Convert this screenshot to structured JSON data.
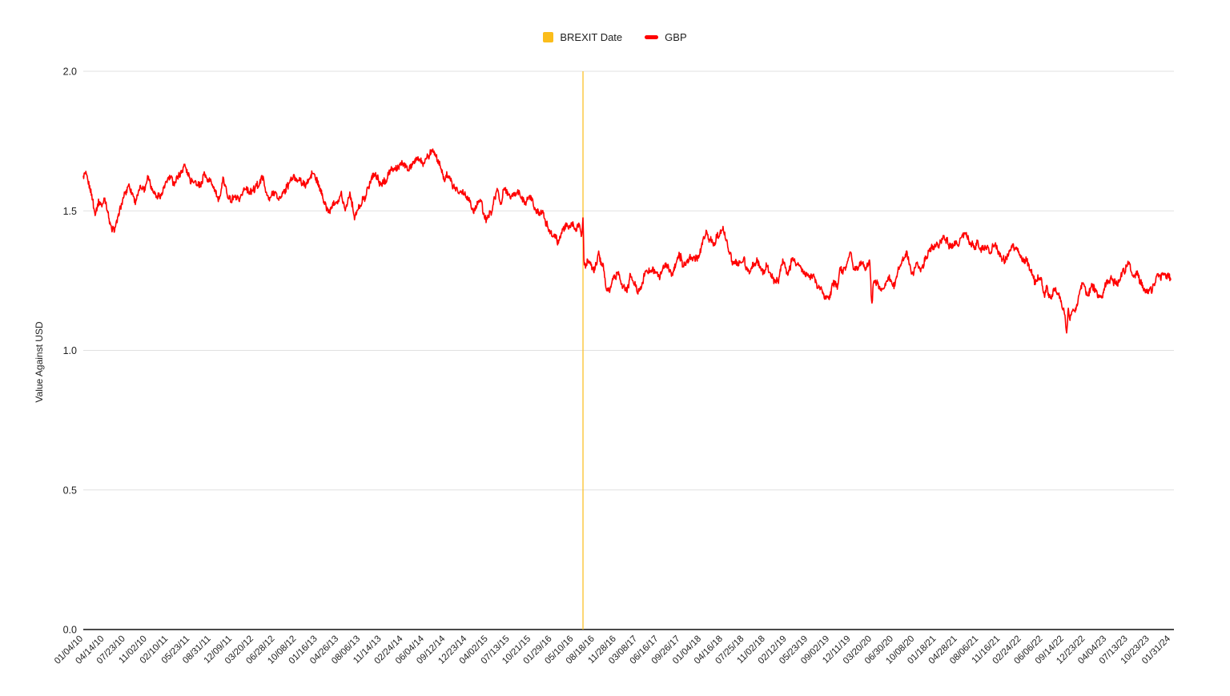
{
  "legend": {
    "items": [
      {
        "label": "BREXIT Date",
        "marker": "square",
        "color": "#FBBD1B"
      },
      {
        "label": "GBP",
        "marker": "dash",
        "color": "#FF0000"
      }
    ]
  },
  "chart_data": {
    "type": "line",
    "title": "",
    "ylabel": "Value Against USD",
    "ylim": [
      0,
      2
    ],
    "grid": true,
    "legend_position": "top-center",
    "colors": {
      "gridline": "#E1E1E1",
      "axis_line": "#4A4A4A",
      "tick_text": "#212121",
      "background": "#FFFFFF"
    },
    "y_ticks": [
      {
        "label": "0.0",
        "value": 0
      },
      {
        "label": "0.5",
        "value": 0.5
      },
      {
        "label": "1.0",
        "value": 1
      },
      {
        "label": "1.5",
        "value": 1.5
      },
      {
        "label": "2.0",
        "value": 2
      }
    ],
    "x_tick_labels": [
      "01/04/10",
      "04/14/10",
      "07/23/10",
      "11/02/10",
      "02/10/11",
      "05/23/11",
      "08/31/11",
      "12/09/11",
      "03/20/12",
      "06/28/12",
      "10/08/12",
      "01/16/13",
      "04/26/13",
      "08/06/13",
      "11/14/13",
      "02/24/14",
      "06/04/14",
      "09/12/14",
      "12/23/14",
      "04/02/15",
      "07/13/15",
      "10/21/15",
      "01/29/16",
      "05/10/16",
      "08/18/16",
      "11/28/16",
      "03/08/17",
      "06/16/17",
      "09/26/17",
      "01/04/18",
      "04/16/18",
      "07/25/18",
      "11/02/18",
      "02/12/19",
      "05/23/19",
      "09/02/19",
      "12/11/19",
      "03/20/20",
      "06/30/20",
      "10/08/20",
      "01/18/21",
      "04/28/21",
      "08/06/21",
      "11/16/21",
      "02/24/22",
      "06/06/22",
      "09/14/22",
      "12/23/22",
      "04/04/23",
      "07/13/23",
      "10/23/23",
      "01/31/24"
    ],
    "annotations": [
      {
        "type": "vline",
        "label": "BREXIT Date",
        "x_date": "06/23/16",
        "color": "#FBBD1B",
        "opacity": 0.62
      }
    ],
    "series": [
      {
        "name": "GBP",
        "color": "#FF0000",
        "anchors": [
          [
            "01/04/10",
            1.613
          ],
          [
            "01/15/10",
            1.636
          ],
          [
            "02/08/10",
            1.563
          ],
          [
            "03/01/10",
            1.492
          ],
          [
            "03/17/10",
            1.536
          ],
          [
            "04/02/10",
            1.519
          ],
          [
            "04/15/10",
            1.548
          ],
          [
            "05/18/10",
            1.43
          ],
          [
            "06/08/10",
            1.446
          ],
          [
            "06/21/10",
            1.482
          ],
          [
            "07/15/10",
            1.545
          ],
          [
            "08/06/10",
            1.596
          ],
          [
            "09/07/10",
            1.538
          ],
          [
            "09/28/10",
            1.585
          ],
          [
            "10/20/10",
            1.583
          ],
          [
            "11/04/10",
            1.624
          ],
          [
            "11/23/10",
            1.577
          ],
          [
            "12/20/10",
            1.549
          ],
          [
            "01/11/11",
            1.555
          ],
          [
            "02/02/11",
            1.619
          ],
          [
            "02/24/11",
            1.613
          ],
          [
            "03/16/11",
            1.602
          ],
          [
            "04/28/11",
            1.664
          ],
          [
            "05/23/11",
            1.612
          ],
          [
            "07/12/11",
            1.588
          ],
          [
            "07/27/11",
            1.637
          ],
          [
            "08/11/11",
            1.613
          ],
          [
            "09/06/11",
            1.596
          ],
          [
            "10/06/11",
            1.53
          ],
          [
            "10/27/11",
            1.612
          ],
          [
            "11/25/11",
            1.545
          ],
          [
            "12/14/11",
            1.545
          ],
          [
            "12/29/11",
            1.546
          ],
          [
            "01/13/12",
            1.53
          ],
          [
            "02/01/12",
            1.582
          ],
          [
            "02/23/12",
            1.571
          ],
          [
            "03/15/12",
            1.565
          ],
          [
            "04/30/12",
            1.623
          ],
          [
            "06/01/12",
            1.536
          ],
          [
            "06/20/12",
            1.573
          ],
          [
            "07/12/12",
            1.543
          ],
          [
            "08/02/12",
            1.551
          ],
          [
            "08/23/12",
            1.586
          ],
          [
            "09/21/12",
            1.625
          ],
          [
            "10/17/12",
            1.614
          ],
          [
            "11/15/12",
            1.585
          ],
          [
            "12/19/12",
            1.626
          ],
          [
            "01/02/13",
            1.625
          ],
          [
            "02/01/13",
            1.571
          ],
          [
            "03/12/13",
            1.492
          ],
          [
            "04/05/13",
            1.534
          ],
          [
            "04/23/13",
            1.524
          ],
          [
            "05/08/13",
            1.553
          ],
          [
            "05/29/13",
            1.505
          ],
          [
            "06/18/13",
            1.564
          ],
          [
            "07/09/13",
            1.48
          ],
          [
            "08/02/13",
            1.529
          ],
          [
            "09/02/13",
            1.556
          ],
          [
            "10/01/13",
            1.62
          ],
          [
            "10/22/13",
            1.623
          ],
          [
            "11/12/13",
            1.591
          ],
          [
            "12/27/13",
            1.648
          ],
          [
            "01/24/14",
            1.65
          ],
          [
            "02/17/14",
            1.672
          ],
          [
            "03/21/14",
            1.65
          ],
          [
            "05/06/14",
            1.697
          ],
          [
            "05/29/14",
            1.672
          ],
          [
            "07/15/14",
            1.715
          ],
          [
            "08/08/14",
            1.677
          ],
          [
            "09/10/14",
            1.61
          ],
          [
            "09/19/14",
            1.639
          ],
          [
            "10/15/14",
            1.591
          ],
          [
            "11/20/14",
            1.567
          ],
          [
            "12/23/14",
            1.551
          ],
          [
            "01/23/15",
            1.499
          ],
          [
            "02/26/15",
            1.546
          ],
          [
            "03/18/15",
            1.468
          ],
          [
            "04/17/15",
            1.496
          ],
          [
            "05/14/15",
            1.576
          ],
          [
            "06/01/15",
            1.519
          ],
          [
            "06/18/15",
            1.588
          ],
          [
            "07/13/15",
            1.549
          ],
          [
            "08/25/15",
            1.57
          ],
          [
            "09/23/15",
            1.523
          ],
          [
            "10/21/15",
            1.548
          ],
          [
            "11/09/15",
            1.504
          ],
          [
            "12/02/15",
            1.494
          ],
          [
            "12/18/15",
            1.492
          ],
          [
            "01/21/16",
            1.42
          ],
          [
            "02/26/16",
            1.387
          ],
          [
            "03/29/16",
            1.438
          ],
          [
            "05/03/16",
            1.454
          ],
          [
            "05/16/16",
            1.439
          ],
          [
            "06/08/16",
            1.456
          ],
          [
            "06/16/16",
            1.411
          ],
          [
            "06/23/16",
            1.48
          ],
          [
            "06/27/16",
            1.322
          ],
          [
            "07/06/16",
            1.293
          ],
          [
            "07/15/16",
            1.319
          ],
          [
            "08/15/16",
            1.288
          ],
          [
            "09/06/16",
            1.342
          ],
          [
            "09/29/16",
            1.297
          ],
          [
            "10/07/16",
            1.243
          ],
          [
            "10/11/16",
            1.212
          ],
          [
            "10/28/16",
            1.219
          ],
          [
            "11/11/16",
            1.259
          ],
          [
            "12/06/16",
            1.272
          ],
          [
            "12/28/16",
            1.222
          ],
          [
            "01/16/17",
            1.205
          ],
          [
            "02/02/17",
            1.266
          ],
          [
            "03/14/17",
            1.215
          ],
          [
            "04/18/17",
            1.284
          ],
          [
            "05/26/17",
            1.28
          ],
          [
            "06/20/17",
            1.263
          ],
          [
            "07/18/17",
            1.304
          ],
          [
            "08/24/17",
            1.28
          ],
          [
            "09/20/17",
            1.352
          ],
          [
            "10/06/17",
            1.306
          ],
          [
            "10/27/17",
            1.313
          ],
          [
            "11/28/17",
            1.337
          ],
          [
            "12/15/17",
            1.332
          ],
          [
            "01/25/18",
            1.426
          ],
          [
            "02/08/18",
            1.391
          ],
          [
            "02/16/18",
            1.403
          ],
          [
            "03/01/18",
            1.376
          ],
          [
            "03/27/18",
            1.415
          ],
          [
            "04/17/18",
            1.434
          ],
          [
            "05/29/18",
            1.325
          ],
          [
            "06/14/18",
            1.326
          ],
          [
            "06/28/18",
            1.308
          ],
          [
            "07/25/18",
            1.32
          ],
          [
            "08/15/18",
            1.27
          ],
          [
            "09/20/18",
            1.326
          ],
          [
            "10/30/18",
            1.271
          ],
          [
            "11/07/18",
            1.314
          ],
          [
            "12/11/18",
            1.249
          ],
          [
            "01/03/19",
            1.252
          ],
          [
            "01/25/19",
            1.32
          ],
          [
            "02/14/19",
            1.28
          ],
          [
            "03/13/19",
            1.333
          ],
          [
            "04/25/19",
            1.29
          ],
          [
            "05/23/19",
            1.266
          ],
          [
            "06/18/19",
            1.254
          ],
          [
            "07/30/19",
            1.215
          ],
          [
            "08/09/19",
            1.203
          ],
          [
            "09/03/19",
            1.196
          ],
          [
            "09/20/19",
            1.248
          ],
          [
            "10/08/19",
            1.221
          ],
          [
            "10/21/19",
            1.296
          ],
          [
            "11/08/19",
            1.278
          ],
          [
            "12/12/19",
            1.35
          ],
          [
            "12/23/19",
            1.293
          ],
          [
            "01/31/20",
            1.321
          ],
          [
            "02/20/20",
            1.288
          ],
          [
            "03/09/20",
            1.317
          ],
          [
            "03/19/20",
            1.149
          ],
          [
            "03/27/20",
            1.245
          ],
          [
            "04/21/20",
            1.229
          ],
          [
            "05/14/20",
            1.223
          ],
          [
            "06/10/20",
            1.275
          ],
          [
            "06/29/20",
            1.229
          ],
          [
            "07/31/20",
            1.309
          ],
          [
            "09/01/20",
            1.34
          ],
          [
            "09/23/20",
            1.272
          ],
          [
            "10/21/20",
            1.314
          ],
          [
            "11/02/20",
            1.292
          ],
          [
            "12/17/20",
            1.358
          ],
          [
            "12/31/20",
            1.367
          ],
          [
            "01/29/21",
            1.37
          ],
          [
            "02/24/21",
            1.414
          ],
          [
            "03/25/21",
            1.372
          ],
          [
            "04/20/21",
            1.393
          ],
          [
            "05/03/21",
            1.382
          ],
          [
            "06/01/21",
            1.415
          ],
          [
            "07/20/21",
            1.363
          ],
          [
            "07/30/21",
            1.39
          ],
          [
            "08/20/21",
            1.362
          ],
          [
            "09/14/21",
            1.381
          ],
          [
            "09/29/21",
            1.343
          ],
          [
            "10/19/21",
            1.382
          ],
          [
            "11/05/21",
            1.349
          ],
          [
            "11/30/21",
            1.322
          ],
          [
            "12/16/21",
            1.333
          ],
          [
            "01/13/22",
            1.372
          ],
          [
            "02/10/22",
            1.356
          ],
          [
            "03/08/22",
            1.31
          ],
          [
            "03/23/22",
            1.32
          ],
          [
            "04/28/22",
            1.246
          ],
          [
            "05/27/22",
            1.263
          ],
          [
            "06/14/22",
            1.199
          ],
          [
            "06/24/22",
            1.227
          ],
          [
            "07/14/22",
            1.182
          ],
          [
            "08/01/22",
            1.225
          ],
          [
            "08/29/22",
            1.171
          ],
          [
            "09/15/22",
            1.146
          ],
          [
            "09/26/22",
            1.055
          ],
          [
            "10/04/22",
            1.147
          ],
          [
            "10/12/22",
            1.11
          ],
          [
            "10/26/22",
            1.162
          ],
          [
            "11/09/22",
            1.136
          ],
          [
            "11/24/22",
            1.211
          ],
          [
            "12/14/22",
            1.242
          ],
          [
            "12/28/22",
            1.202
          ],
          [
            "01/06/23",
            1.192
          ],
          [
            "01/23/23",
            1.238
          ],
          [
            "02/07/23",
            1.205
          ],
          [
            "03/08/23",
            1.184
          ],
          [
            "04/04/23",
            1.25
          ],
          [
            "04/28/23",
            1.257
          ],
          [
            "05/25/23",
            1.232
          ],
          [
            "06/21/23",
            1.277
          ],
          [
            "07/13/23",
            1.313
          ],
          [
            "08/03/23",
            1.271
          ],
          [
            "08/30/23",
            1.272
          ],
          [
            "09/26/23",
            1.216
          ],
          [
            "10/03/23",
            1.208
          ],
          [
            "11/01/23",
            1.215
          ],
          [
            "11/29/23",
            1.269
          ],
          [
            "12/13/23",
            1.262
          ],
          [
            "12/28/23",
            1.274
          ],
          [
            "01/17/24",
            1.267
          ],
          [
            "01/31/24",
            1.269
          ]
        ]
      }
    ]
  }
}
